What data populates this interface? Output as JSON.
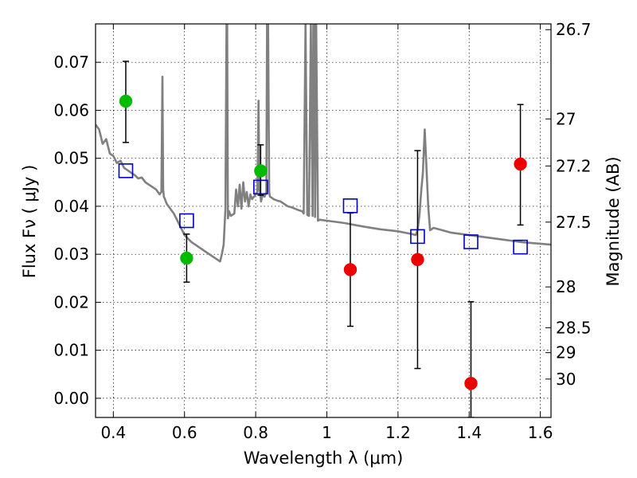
{
  "chart_data": {
    "type": "scatter",
    "xlabel": "Wavelength  λ (μm)",
    "ylabel": "Flux  Fν  ( μJy )",
    "ylabel_right": "Magnitude (AB)",
    "xlim": [
      0.35,
      1.63
    ],
    "ylim": [
      -0.004,
      0.078
    ],
    "grid": true,
    "x_ticks": [
      0.4,
      0.6,
      0.8,
      1.0,
      1.2,
      1.4,
      1.6
    ],
    "x_tick_labels": [
      "0.4",
      "0.6",
      "0.8",
      "1",
      "1.2",
      "1.4",
      "1.6"
    ],
    "y_ticks": [
      0.0,
      0.01,
      0.02,
      0.03,
      0.04,
      0.05,
      0.06,
      0.07
    ],
    "y_tick_labels": [
      "0.00",
      "0.01",
      "0.02",
      "0.03",
      "0.04",
      "0.05",
      "0.06",
      "0.07"
    ],
    "right_ticks": [
      {
        "label": "26.7",
        "flux": 0.0768
      },
      {
        "label": "27",
        "flux": 0.0582
      },
      {
        "label": "27.2",
        "flux": 0.0484
      },
      {
        "label": "27.5",
        "flux": 0.0367
      },
      {
        "label": "28",
        "flux": 0.0232
      },
      {
        "label": "28.5",
        "flux": 0.0147
      },
      {
        "label": "29",
        "flux": 0.0095
      },
      {
        "label": "30",
        "flux": 0.004
      }
    ],
    "colors": {
      "model": "#808080",
      "green": "#00bb00",
      "red": "#ee0000",
      "squares": "#0000cc",
      "errorbar": "#000000"
    },
    "series": [
      {
        "style": "line",
        "x": [
          0.35,
          0.36,
          0.37,
          0.38,
          0.39,
          0.4,
          0.41,
          0.42,
          0.43,
          0.44,
          0.45,
          0.46,
          0.47,
          0.48,
          0.49,
          0.5,
          0.51,
          0.52,
          0.53,
          0.535,
          0.538,
          0.54,
          0.542,
          0.545,
          0.55,
          0.56,
          0.57,
          0.58,
          0.59,
          0.6,
          0.62,
          0.64,
          0.66,
          0.68,
          0.7,
          0.705,
          0.71,
          0.715,
          0.718,
          0.72,
          0.722,
          0.725,
          0.73,
          0.74,
          0.745,
          0.75,
          0.755,
          0.76,
          0.765,
          0.77,
          0.775,
          0.78,
          0.785,
          0.79,
          0.795,
          0.8,
          0.805,
          0.808,
          0.81,
          0.812,
          0.815,
          0.82,
          0.825,
          0.83,
          0.832,
          0.835,
          0.838,
          0.84,
          0.845,
          0.85,
          0.86,
          0.87,
          0.88,
          0.89,
          0.9,
          0.91,
          0.92,
          0.93,
          0.935,
          0.94,
          0.945,
          0.95,
          0.955,
          0.96,
          0.962,
          0.965,
          0.967,
          0.97,
          0.975,
          0.98,
          1.0,
          1.05,
          1.1,
          1.15,
          1.2,
          1.22,
          1.24,
          1.25,
          1.255,
          1.26,
          1.265,
          1.27,
          1.275,
          1.28,
          1.285,
          1.29,
          1.3,
          1.35,
          1.4,
          1.45,
          1.5,
          1.55,
          1.6,
          1.63
        ],
        "y": [
          0.057,
          0.056,
          0.053,
          0.054,
          0.051,
          0.0505,
          0.049,
          0.0495,
          0.048,
          0.0475,
          0.047,
          0.0465,
          0.0458,
          0.046,
          0.045,
          0.0445,
          0.044,
          0.0435,
          0.0425,
          0.043,
          0.067,
          0.0435,
          0.042,
          0.0415,
          0.0405,
          0.0395,
          0.0385,
          0.037,
          0.0355,
          0.034,
          0.0325,
          0.0315,
          0.0305,
          0.0295,
          0.0285,
          0.03,
          0.032,
          0.0395,
          0.078,
          0.078,
          0.0375,
          0.039,
          0.038,
          0.0385,
          0.0435,
          0.04,
          0.0445,
          0.0395,
          0.045,
          0.041,
          0.043,
          0.04,
          0.0425,
          0.0415,
          0.042,
          0.0425,
          0.043,
          0.062,
          0.0435,
          0.043,
          0.041,
          0.0425,
          0.042,
          0.043,
          0.078,
          0.078,
          0.043,
          0.042,
          0.0418,
          0.0415,
          0.0412,
          0.041,
          0.0405,
          0.04,
          0.0398,
          0.0395,
          0.0392,
          0.039,
          0.0385,
          0.078,
          0.0382,
          0.038,
          0.078,
          0.038,
          0.078,
          0.078,
          0.0378,
          0.078,
          0.037,
          0.0372,
          0.037,
          0.0365,
          0.0358,
          0.0352,
          0.0348,
          0.0345,
          0.0342,
          0.034,
          0.035,
          0.038,
          0.043,
          0.047,
          0.056,
          0.048,
          0.04,
          0.035,
          0.0355,
          0.0345,
          0.034,
          0.0335,
          0.033,
          0.0325,
          0.0322,
          0.032
        ]
      },
      {
        "style": "markers-circle",
        "color_key": "green",
        "points": [
          {
            "x": 0.435,
            "y": 0.0619,
            "err_low": 0.0533,
            "err_high": 0.0702
          },
          {
            "x": 0.606,
            "y": 0.0292,
            "err_low": 0.0242,
            "err_high": 0.0342
          },
          {
            "x": 0.814,
            "y": 0.0474,
            "err_low": 0.0423,
            "err_high": 0.0528
          }
        ]
      },
      {
        "style": "markers-circle",
        "color_key": "red",
        "points": [
          {
            "x": 1.066,
            "y": 0.0268,
            "err_low": 0.015,
            "err_high": 0.0386
          },
          {
            "x": 1.255,
            "y": 0.0289,
            "err_low": 0.0062,
            "err_high": 0.0516
          },
          {
            "x": 1.405,
            "y": 0.0031,
            "err_low": -0.004,
            "err_high": 0.0201
          },
          {
            "x": 1.544,
            "y": 0.0488,
            "err_low": 0.0361,
            "err_high": 0.0612
          }
        ]
      },
      {
        "style": "markers-square-open",
        "color_key": "squares",
        "points": [
          {
            "x": 0.435,
            "y": 0.0474
          },
          {
            "x": 0.606,
            "y": 0.037
          },
          {
            "x": 0.814,
            "y": 0.044
          },
          {
            "x": 1.066,
            "y": 0.0401
          },
          {
            "x": 1.255,
            "y": 0.0337
          },
          {
            "x": 1.405,
            "y": 0.0326
          },
          {
            "x": 1.544,
            "y": 0.0315
          }
        ]
      }
    ]
  }
}
